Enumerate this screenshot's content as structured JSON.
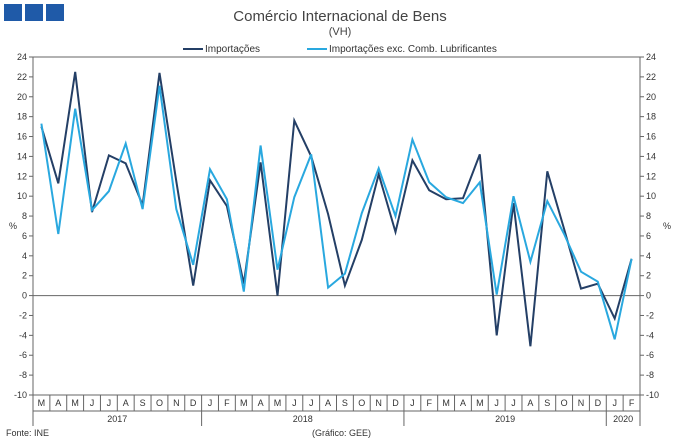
{
  "logo": {
    "name": "gee-logo"
  },
  "chart_data": {
    "type": "line",
    "title": "Comércio Internacional de Bens",
    "subtitle": "(VH)",
    "ylabel_left": "%",
    "ylabel_right": "%",
    "ylim": [
      -10,
      24
    ],
    "yticks": [
      -10,
      -8,
      -6,
      -4,
      -2,
      0,
      2,
      4,
      6,
      8,
      10,
      12,
      14,
      16,
      18,
      20,
      22,
      24
    ],
    "grid": false,
    "legend_position": "top-center",
    "months": [
      "M",
      "A",
      "M",
      "J",
      "J",
      "A",
      "S",
      "O",
      "N",
      "D",
      "J",
      "F",
      "M",
      "A",
      "M",
      "J",
      "J",
      "A",
      "S",
      "O",
      "N",
      "D",
      "J",
      "F",
      "M",
      "A",
      "M",
      "J",
      "J",
      "A",
      "S",
      "O",
      "N",
      "D",
      "J",
      "F"
    ],
    "years": [
      {
        "label": "2017",
        "start": 0,
        "end": 9
      },
      {
        "label": "2018",
        "start": 10,
        "end": 21
      },
      {
        "label": "2019",
        "start": 22,
        "end": 33
      },
      {
        "label": "2020",
        "start": 34,
        "end": 35
      }
    ],
    "series": [
      {
        "name": "Importações",
        "color": "#243f66",
        "values": [
          17.0,
          11.3,
          22.5,
          8.4,
          14.1,
          13.3,
          9.1,
          22.4,
          11.5,
          1.0,
          11.6,
          9.0,
          1.2,
          13.4,
          0.0,
          17.6,
          14.0,
          8.2,
          1.0,
          5.6,
          12.2,
          6.4,
          13.6,
          10.6,
          9.7,
          9.8,
          14.2,
          -4.0,
          9.3,
          -5.1,
          12.5,
          6.7,
          0.7,
          1.2,
          -2.3,
          3.7
        ]
      },
      {
        "name": "Importações exc. Comb. Lubrificantes",
        "color": "#29a8df",
        "values": [
          17.3,
          6.2,
          18.8,
          8.6,
          10.5,
          15.3,
          8.7,
          21.1,
          8.7,
          3.1,
          12.7,
          9.7,
          0.4,
          15.1,
          2.6,
          9.9,
          14.2,
          0.8,
          2.2,
          8.3,
          12.8,
          8.0,
          15.7,
          11.4,
          9.9,
          9.3,
          11.4,
          0.1,
          10.0,
          3.4,
          9.5,
          6.2,
          2.4,
          1.4,
          -4.4,
          3.7
        ]
      }
    ]
  },
  "footer": {
    "source": "Fonte: INE",
    "credit": "(Gráfico: GEE)"
  }
}
